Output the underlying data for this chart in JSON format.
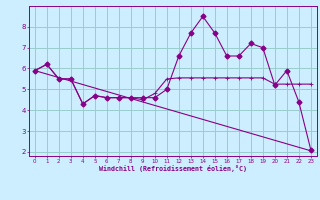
{
  "xlabel": "Windchill (Refroidissement éolien,°C)",
  "background_color": "#cceeff",
  "line_color": "#880088",
  "grid_color": "#99cccc",
  "x_values": [
    0,
    1,
    2,
    3,
    4,
    5,
    6,
    7,
    8,
    9,
    10,
    11,
    12,
    13,
    14,
    15,
    16,
    17,
    18,
    19,
    20,
    21,
    22,
    23
  ],
  "series1": [
    5.9,
    6.2,
    5.5,
    5.5,
    4.3,
    4.7,
    4.6,
    4.6,
    4.6,
    4.6,
    4.6,
    5.0,
    6.6,
    7.7,
    8.5,
    7.7,
    6.6,
    6.6,
    7.2,
    7.0,
    5.2,
    5.9,
    4.4,
    2.1
  ],
  "series2": [
    5.9,
    6.2,
    5.5,
    5.5,
    4.3,
    4.7,
    4.6,
    4.6,
    4.6,
    4.5,
    4.8,
    5.5,
    5.55,
    5.55,
    5.55,
    5.55,
    5.55,
    5.55,
    5.55,
    5.55,
    5.25,
    5.25,
    5.25,
    5.25
  ],
  "series3_x": [
    0,
    23
  ],
  "series3_y": [
    5.9,
    2.05
  ],
  "ylim": [
    1.8,
    9.0
  ],
  "xlim": [
    -0.5,
    23.5
  ],
  "yticks": [
    2,
    3,
    4,
    5,
    6,
    7,
    8
  ],
  "xticks": [
    0,
    1,
    2,
    3,
    4,
    5,
    6,
    7,
    8,
    9,
    10,
    11,
    12,
    13,
    14,
    15,
    16,
    17,
    18,
    19,
    20,
    21,
    22,
    23
  ]
}
